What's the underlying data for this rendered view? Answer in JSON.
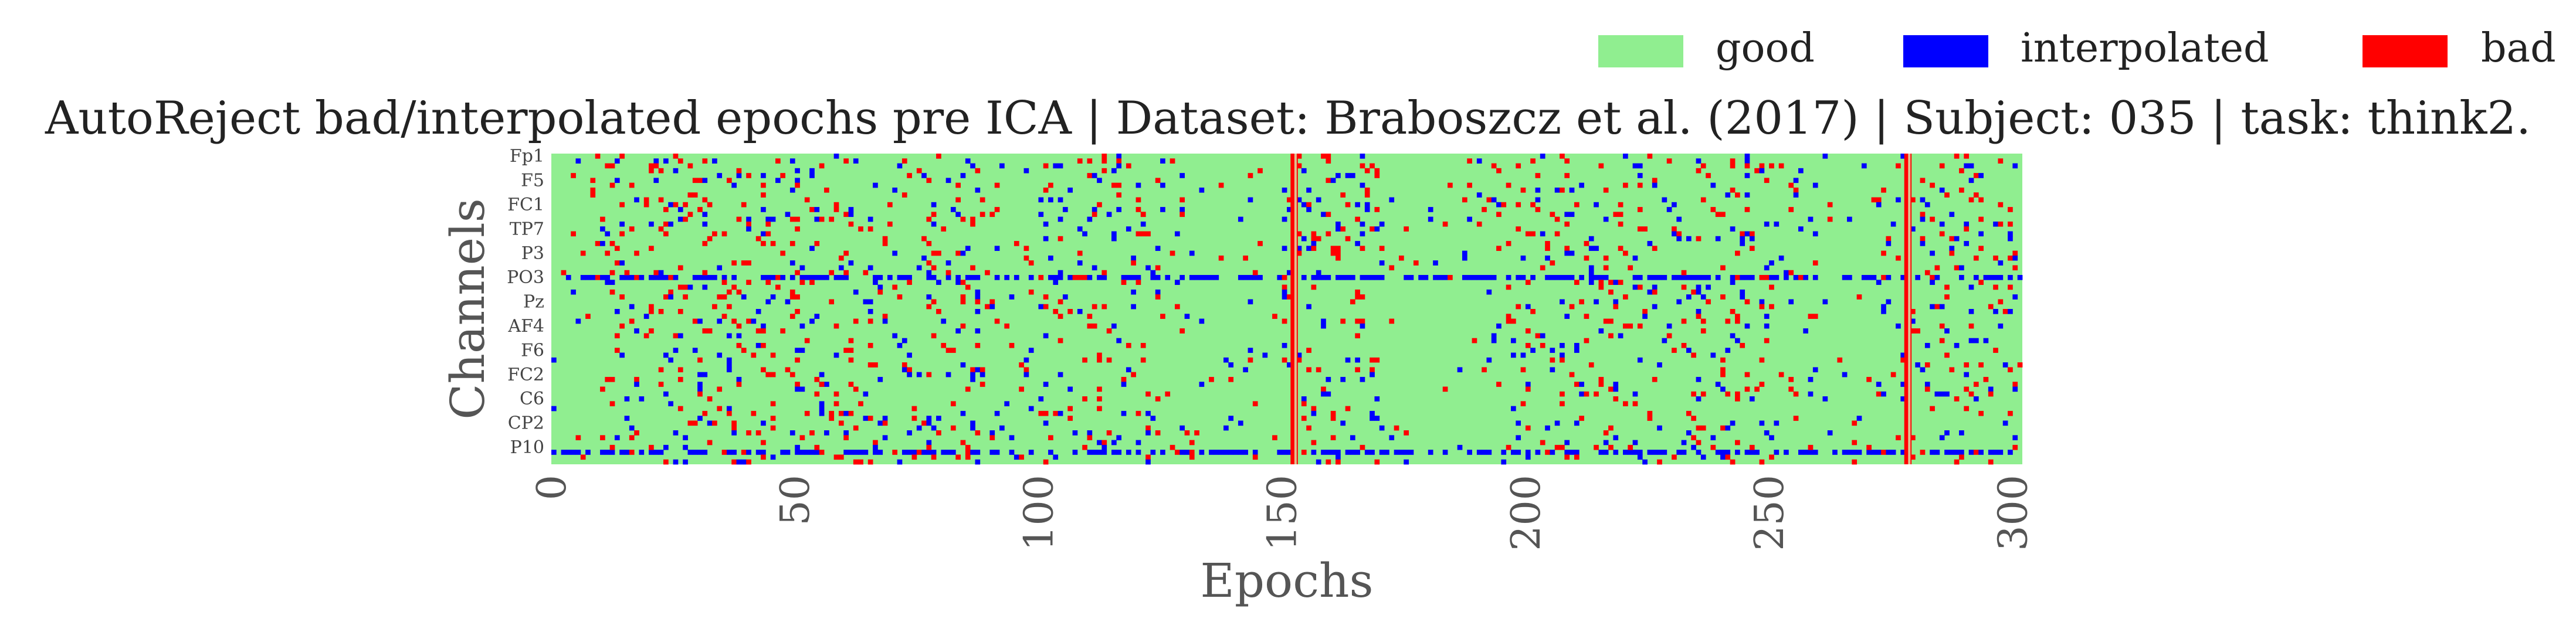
{
  "chart_data": {
    "type": "heatmap",
    "title": "AutoReject bad/interpolated epochs pre ICA | Dataset: Braboszcz et al. (2017) | Subject: 035 | task: think2.",
    "xlabel": "Epochs",
    "ylabel": "Channels",
    "xlim": [
      0,
      302
    ],
    "x_ticks": [
      0,
      50,
      100,
      150,
      200,
      250,
      300
    ],
    "x_tick_labels": [
      "0",
      "50",
      "100",
      "150",
      "200",
      "250",
      "300"
    ],
    "n_channels": 64,
    "y_tick_labels": [
      "Fp1",
      "F5",
      "FC1",
      "TP7",
      "P3",
      "PO3",
      "Pz",
      "AF4",
      "F6",
      "FC2",
      "C6",
      "CP2",
      "P10"
    ],
    "y_tick_indices": [
      0,
      5,
      10,
      15,
      20,
      25,
      30,
      35,
      40,
      45,
      50,
      55,
      60
    ],
    "legend_position": "top-right",
    "legend": [
      {
        "label": "good",
        "color": "#90ee90"
      },
      {
        "label": "interpolated",
        "color": "#0000ff"
      },
      {
        "label": "bad",
        "color": "#ff0000"
      }
    ],
    "colors": {
      "good": "#90ee90",
      "interpolated": "#0000ff",
      "bad": "#ff0000"
    },
    "bad_epochs": [
      152,
      278
    ],
    "interpolated_channels": [
      25,
      61
    ],
    "sample_cells": [
      {
        "epoch": 12,
        "channel": 6,
        "state": "bad"
      },
      {
        "epoch": 13,
        "channel": 40,
        "state": "bad"
      },
      {
        "epoch": 38,
        "channel": 3,
        "state": "bad"
      },
      {
        "epoch": 40,
        "channel": 22,
        "state": "bad"
      },
      {
        "epoch": 46,
        "channel": 5,
        "state": "interpolated"
      },
      {
        "epoch": 54,
        "channel": 33,
        "state": "interpolated"
      },
      {
        "epoch": 55,
        "channel": 47,
        "state": "bad"
      },
      {
        "epoch": 69,
        "channel": 14,
        "state": "bad"
      },
      {
        "epoch": 72,
        "channel": 8,
        "state": "bad"
      },
      {
        "epoch": 78,
        "channel": 12,
        "state": "bad"
      },
      {
        "epoch": 80,
        "channel": 15,
        "state": "bad"
      },
      {
        "epoch": 87,
        "channel": 7,
        "state": "interpolated"
      },
      {
        "epoch": 104,
        "channel": 45,
        "state": "interpolated"
      },
      {
        "epoch": 114,
        "channel": 42,
        "state": "bad"
      },
      {
        "epoch": 117,
        "channel": 47,
        "state": "interpolated"
      },
      {
        "epoch": 121,
        "channel": 12,
        "state": "bad"
      },
      {
        "epoch": 137,
        "channel": 21,
        "state": "bad"
      },
      {
        "epoch": 163,
        "channel": 17,
        "state": "bad"
      },
      {
        "epoch": 180,
        "channel": 13,
        "state": "interpolated"
      },
      {
        "epoch": 193,
        "channel": 38,
        "state": "interpolated"
      },
      {
        "epoch": 198,
        "channel": 15,
        "state": "bad"
      },
      {
        "epoch": 202,
        "channel": 9,
        "state": "interpolated"
      },
      {
        "epoch": 206,
        "channel": 16,
        "state": "bad"
      },
      {
        "epoch": 214,
        "channel": 10,
        "state": "interpolated"
      },
      {
        "epoch": 226,
        "channel": 19,
        "state": "bad"
      },
      {
        "epoch": 236,
        "channel": 49,
        "state": "bad"
      },
      {
        "epoch": 240,
        "channel": 44,
        "state": "bad"
      },
      {
        "epoch": 243,
        "channel": 8,
        "state": "bad"
      },
      {
        "epoch": 246,
        "channel": 50,
        "state": "interpolated"
      },
      {
        "epoch": 258,
        "channel": 13,
        "state": "interpolated"
      },
      {
        "epoch": 272,
        "channel": 47,
        "state": "interpolated"
      },
      {
        "epoch": 285,
        "channel": 14,
        "state": "interpolated"
      },
      {
        "epoch": 292,
        "channel": 38,
        "state": "interpolated"
      },
      {
        "epoch": 297,
        "channel": 30,
        "state": "bad"
      }
    ]
  }
}
